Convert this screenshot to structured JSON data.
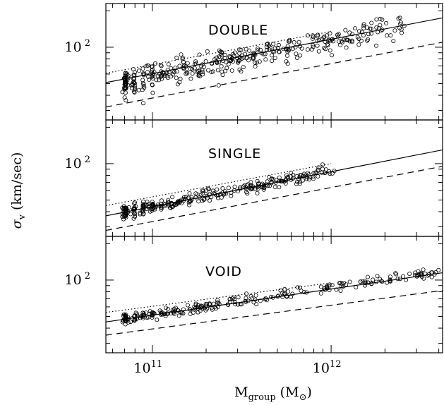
{
  "figure": {
    "ylabel_symbol": "σ",
    "ylabel_sub": "v",
    "ylabel_rest": " (km/sec)",
    "xlabel_main": "M",
    "xlabel_sub": "group",
    "xlabel_paren_open": " (M",
    "xlabel_sun": "⊙",
    "xlabel_paren_close": ")"
  },
  "chart_data": [
    {
      "type": "scatter",
      "panel": "DOUBLE",
      "xscale": "log",
      "yscale": "log",
      "xlim": [
        55000000000.0,
        4200000000000.0
      ],
      "ylim": [
        25,
        230
      ],
      "xticks": [
        {
          "base": "10",
          "exp": "11",
          "value": 100000000000.0
        },
        {
          "base": "10",
          "exp": "12",
          "value": 1000000000000.0
        }
      ],
      "yticks": [
        {
          "base": "10",
          "exp": "2",
          "value": 100
        }
      ],
      "relations": {
        "solid": [
          [
            55000000000.0,
            51
          ],
          [
            4200000000000.0,
            175
          ]
        ],
        "dotted": [
          [
            55000000000.0,
            61
          ],
          [
            1000000000000.0,
            135
          ]
        ],
        "dashed": [
          [
            55000000000.0,
            32
          ],
          [
            4200000000000.0,
            110
          ]
        ]
      },
      "scatter": {
        "n": 380,
        "xrange": [
          68000000000.0,
          2600000000000.0
        ],
        "median_slope": 0.3,
        "median_at_1e11": 58,
        "scatter_dex": 0.09,
        "seed": 11
      }
    },
    {
      "type": "scatter",
      "panel": "SINGLE",
      "xscale": "log",
      "yscale": "log",
      "xlim": [
        55000000000.0,
        4200000000000.0
      ],
      "ylim": [
        25,
        230
      ],
      "xticks": [
        {
          "base": "10",
          "exp": "11",
          "value": 100000000000.0
        },
        {
          "base": "10",
          "exp": "12",
          "value": 1000000000000.0
        }
      ],
      "yticks": [
        {
          "base": "10",
          "exp": "2",
          "value": 100
        }
      ],
      "relations": {
        "solid": [
          [
            55000000000.0,
            37
          ],
          [
            4200000000000.0,
            130
          ]
        ],
        "dotted": [
          [
            55000000000.0,
            45
          ],
          [
            1000000000000.0,
            100
          ]
        ],
        "dashed": [
          [
            55000000000.0,
            28
          ],
          [
            4200000000000.0,
            95
          ]
        ]
      },
      "scatter": {
        "n": 300,
        "xrange": [
          68000000000.0,
          1050000000000.0
        ],
        "median_slope": 0.3,
        "median_at_1e11": 44,
        "scatter_dex": 0.045,
        "seed": 23
      }
    },
    {
      "type": "scatter",
      "panel": "VOID",
      "xscale": "log",
      "yscale": "log",
      "xlim": [
        55000000000.0,
        4200000000000.0
      ],
      "ylim": [
        25,
        230
      ],
      "xticks": [
        {
          "base": "10",
          "exp": "11",
          "value": 100000000000.0
        },
        {
          "base": "10",
          "exp": "12",
          "value": 1000000000000.0
        }
      ],
      "yticks": [
        {
          "base": "10",
          "exp": "2",
          "value": 100
        }
      ],
      "relations": {
        "solid": [
          [
            55000000000.0,
            45
          ],
          [
            4200000000000.0,
            115
          ]
        ],
        "dotted": [
          [
            55000000000.0,
            54
          ],
          [
            1000000000000.0,
            95
          ]
        ],
        "dashed": [
          [
            55000000000.0,
            35
          ],
          [
            4200000000000.0,
            82
          ]
        ]
      },
      "scatter": {
        "n": 260,
        "xrange": [
          68000000000.0,
          4000000000000.0
        ],
        "median_slope": 0.22,
        "median_at_1e11": 52,
        "scatter_dex": 0.035,
        "seed": 37
      }
    }
  ]
}
